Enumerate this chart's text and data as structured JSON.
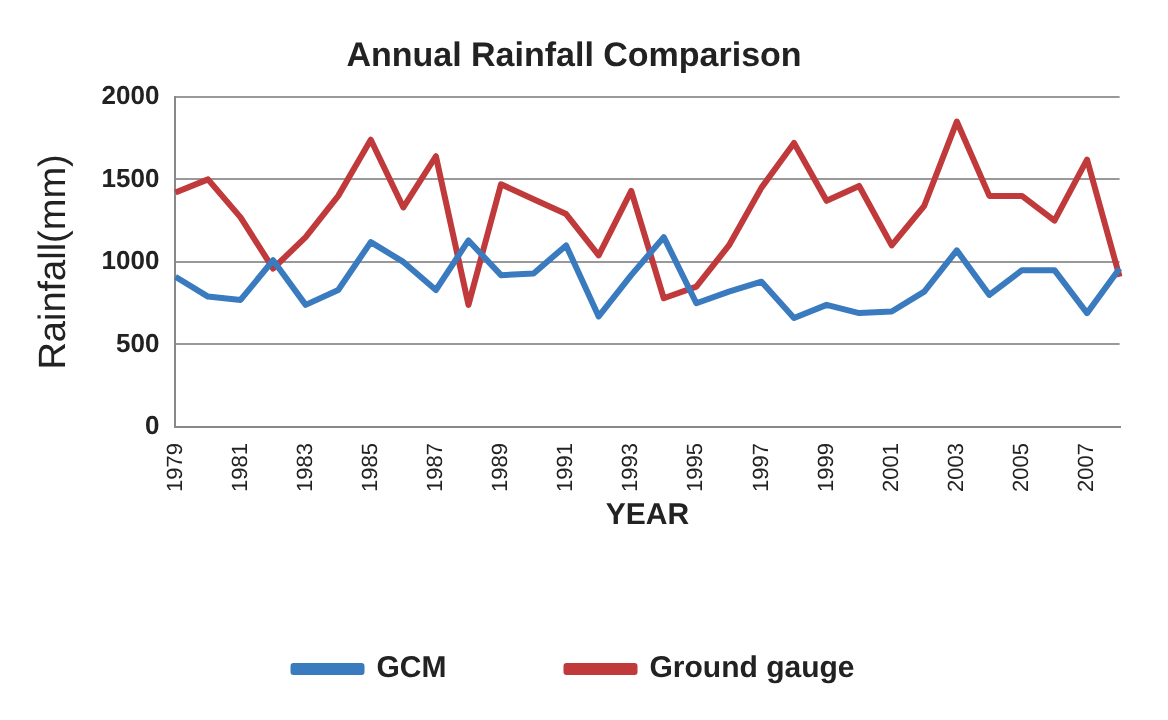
{
  "chart_data": {
    "type": "line",
    "title": "Annual Rainfall Comparison",
    "xlabel": "YEAR",
    "ylabel": "Rainfall(mm)",
    "categories": [
      "1979",
      null,
      "1981",
      null,
      "1983",
      null,
      "1985",
      null,
      "1987",
      null,
      "1989",
      null,
      "1991",
      null,
      "1993",
      null,
      "1995",
      null,
      "1997",
      null,
      "1999",
      null,
      "2001",
      null,
      "2003",
      null,
      "2005",
      null,
      "2007",
      null
    ],
    "series": [
      {
        "name": "GCM",
        "color": "#3a7abf",
        "values": [
          910,
          790,
          770,
          1010,
          740,
          830,
          1120,
          1000,
          830,
          1130,
          920,
          930,
          1100,
          670,
          920,
          1150,
          750,
          820,
          880,
          660,
          740,
          690,
          700,
          820,
          1070,
          800,
          950,
          950,
          690,
          960
        ]
      },
      {
        "name": "Ground gauge",
        "color": "#c0393b",
        "values": [
          1420,
          1500,
          1270,
          960,
          1150,
          1400,
          1740,
          1330,
          1640,
          740,
          1470,
          1380,
          1290,
          1040,
          1430,
          780,
          850,
          1100,
          1450,
          1720,
          1370,
          1460,
          1100,
          1340,
          1850,
          1400,
          1400,
          1250,
          1620,
          910
        ]
      }
    ],
    "ylim": [
      0,
      2000
    ],
    "yticks": [
      0,
      500,
      1000,
      1500,
      2000
    ],
    "grid": "y",
    "legend": "bottom",
    "marker": "none",
    "line_style": "solid"
  }
}
